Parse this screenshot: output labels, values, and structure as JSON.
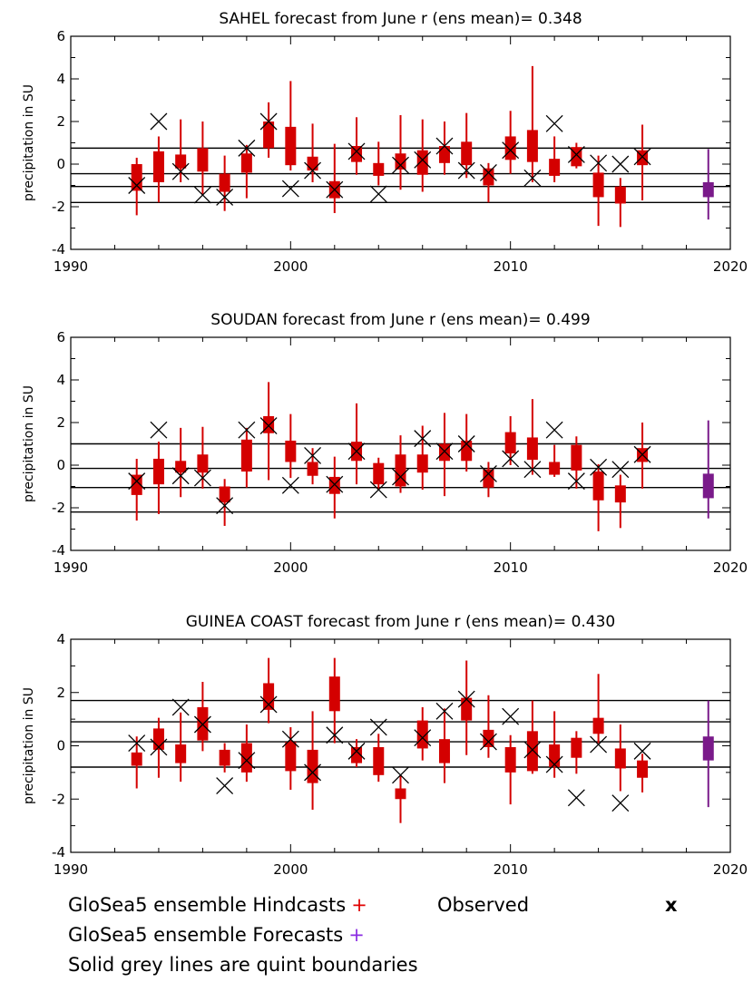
{
  "chart_data": [
    {
      "type": "box",
      "title": "SAHEL forecast from June  r (ens mean)= 0.348",
      "ylabel": "precipitation  in SU",
      "xlim": [
        1990,
        2020
      ],
      "ylim": [
        -4,
        6
      ],
      "xticks": [
        "1990",
        "2000",
        "2010",
        "2020"
      ],
      "yticks": [
        "-4",
        "-2",
        "0",
        "2",
        "4",
        "6"
      ],
      "quint_boundaries": [
        0.75,
        -0.45,
        -1.05,
        -1.8
      ],
      "hindcasts": [
        {
          "year": 1993,
          "low": -2.4,
          "q1": -1.25,
          "q3": 0.0,
          "high": 0.3
        },
        {
          "year": 1994,
          "low": -1.8,
          "q1": -0.85,
          "q3": 0.6,
          "high": 1.3
        },
        {
          "year": 1995,
          "low": -0.85,
          "q1": -0.2,
          "q3": 0.45,
          "high": 2.1
        },
        {
          "year": 1996,
          "low": -1.4,
          "q1": -0.35,
          "q3": 0.75,
          "high": 2.0
        },
        {
          "year": 1997,
          "low": -2.2,
          "q1": -1.3,
          "q3": -0.45,
          "high": 0.4
        },
        {
          "year": 1998,
          "low": -1.6,
          "q1": -0.4,
          "q3": 0.5,
          "high": 0.9
        },
        {
          "year": 1999,
          "low": 0.3,
          "q1": 0.75,
          "q3": 2.0,
          "high": 2.9
        },
        {
          "year": 2000,
          "low": -0.3,
          "q1": -0.05,
          "q3": 1.75,
          "high": 3.9
        },
        {
          "year": 2001,
          "low": -0.85,
          "q1": -0.3,
          "q3": 0.35,
          "high": 1.9
        },
        {
          "year": 2002,
          "low": -2.3,
          "q1": -1.6,
          "q3": -0.8,
          "high": 0.95
        },
        {
          "year": 2003,
          "low": -0.5,
          "q1": 0.1,
          "q3": 0.85,
          "high": 2.2
        },
        {
          "year": 2004,
          "low": -1.0,
          "q1": -0.55,
          "q3": 0.05,
          "high": 1.05
        },
        {
          "year": 2005,
          "low": -1.2,
          "q1": -0.25,
          "q3": 0.5,
          "high": 2.3
        },
        {
          "year": 2006,
          "low": -1.3,
          "q1": -0.5,
          "q3": 0.65,
          "high": 2.1
        },
        {
          "year": 2007,
          "low": -0.5,
          "q1": 0.05,
          "q3": 0.85,
          "high": 2.0
        },
        {
          "year": 2008,
          "low": -0.65,
          "q1": -0.05,
          "q3": 1.05,
          "high": 2.4
        },
        {
          "year": 2009,
          "low": -1.8,
          "q1": -1.0,
          "q3": -0.2,
          "high": 0.05
        },
        {
          "year": 2010,
          "low": -0.45,
          "q1": 0.2,
          "q3": 1.3,
          "high": 2.5
        },
        {
          "year": 2011,
          "low": -0.85,
          "q1": 0.1,
          "q3": 1.6,
          "high": 4.6
        },
        {
          "year": 2012,
          "low": -0.85,
          "q1": -0.55,
          "q3": 0.25,
          "high": 1.3
        },
        {
          "year": 2013,
          "low": -0.2,
          "q1": -0.1,
          "q3": 0.8,
          "high": 1.0
        },
        {
          "year": 2014,
          "low": -2.9,
          "q1": -1.55,
          "q3": -0.4,
          "high": 0.4
        },
        {
          "year": 2015,
          "low": -2.95,
          "q1": -1.85,
          "q3": -1.05,
          "high": -0.65
        },
        {
          "year": 2016,
          "low": -1.7,
          "q1": -0.05,
          "q3": 0.65,
          "high": 1.85
        }
      ],
      "forecast": {
        "year": 2019,
        "low": -2.6,
        "q1": -1.55,
        "q3": -0.85,
        "high": 0.7
      },
      "observed": [
        {
          "year": 1993,
          "value": -1.0
        },
        {
          "year": 1994,
          "value": 2.0
        },
        {
          "year": 1995,
          "value": -0.35
        },
        {
          "year": 1996,
          "value": -1.45
        },
        {
          "year": 1997,
          "value": -1.55
        },
        {
          "year": 1998,
          "value": 0.75
        },
        {
          "year": 1999,
          "value": 2.0
        },
        {
          "year": 2000,
          "value": -1.15
        },
        {
          "year": 2001,
          "value": -0.3
        },
        {
          "year": 2002,
          "value": -1.2
        },
        {
          "year": 2003,
          "value": 0.6
        },
        {
          "year": 2004,
          "value": -1.4
        },
        {
          "year": 2005,
          "value": -0.05
        },
        {
          "year": 2006,
          "value": 0.2
        },
        {
          "year": 2007,
          "value": 0.85
        },
        {
          "year": 2008,
          "value": -0.3
        },
        {
          "year": 2009,
          "value": -0.4
        },
        {
          "year": 2010,
          "value": 0.65
        },
        {
          "year": 2011,
          "value": -0.65
        },
        {
          "year": 2012,
          "value": 1.9
        },
        {
          "year": 2013,
          "value": 0.45
        },
        {
          "year": 2014,
          "value": 0.05
        },
        {
          "year": 2015,
          "value": 0.0
        },
        {
          "year": 2016,
          "value": 0.35
        }
      ]
    },
    {
      "type": "box",
      "title": "SOUDAN forecast from June  r (ens mean)= 0.499",
      "ylabel": "precipitation  in SU",
      "xlim": [
        1990,
        2020
      ],
      "ylim": [
        -4,
        6
      ],
      "xticks": [
        "1990",
        "2000",
        "2010",
        "2020"
      ],
      "yticks": [
        "-4",
        "-2",
        "0",
        "2",
        "4",
        "6"
      ],
      "quint_boundaries": [
        1.0,
        -0.15,
        -1.05,
        -2.2
      ],
      "hindcasts": [
        {
          "year": 1993,
          "low": -2.6,
          "q1": -1.4,
          "q3": -0.45,
          "high": 0.3
        },
        {
          "year": 1994,
          "low": -2.3,
          "q1": -0.9,
          "q3": 0.3,
          "high": 1.1
        },
        {
          "year": 1995,
          "low": -1.5,
          "q1": -0.35,
          "q3": 0.2,
          "high": 1.75
        },
        {
          "year": 1996,
          "low": -1.1,
          "q1": -0.35,
          "q3": 0.5,
          "high": 1.8
        },
        {
          "year": 1997,
          "low": -2.85,
          "q1": -1.75,
          "q3": -1.0,
          "high": -0.65
        },
        {
          "year": 1998,
          "low": -1.05,
          "q1": -0.3,
          "q3": 1.2,
          "high": 1.75
        },
        {
          "year": 1999,
          "low": -0.7,
          "q1": 1.5,
          "q3": 2.3,
          "high": 3.9
        },
        {
          "year": 2000,
          "low": -0.6,
          "q1": 0.15,
          "q3": 1.15,
          "high": 2.4
        },
        {
          "year": 2001,
          "low": -0.9,
          "q1": -0.5,
          "q3": 0.15,
          "high": 0.8
        },
        {
          "year": 2002,
          "low": -2.5,
          "q1": -1.35,
          "q3": -0.55,
          "high": 0.4
        },
        {
          "year": 2003,
          "low": -0.9,
          "q1": 0.2,
          "q3": 1.1,
          "high": 2.9
        },
        {
          "year": 2004,
          "low": -1.15,
          "q1": -0.9,
          "q3": 0.1,
          "high": 0.35
        },
        {
          "year": 2005,
          "low": -1.3,
          "q1": -1.0,
          "q3": 0.5,
          "high": 1.4
        },
        {
          "year": 2006,
          "low": -1.15,
          "q1": -0.35,
          "q3": 0.5,
          "high": 1.85
        },
        {
          "year": 2007,
          "low": -1.45,
          "q1": 0.2,
          "q3": 1.0,
          "high": 2.45
        },
        {
          "year": 2008,
          "low": -0.3,
          "q1": 0.2,
          "q3": 1.15,
          "high": 2.4
        },
        {
          "year": 2009,
          "low": -1.5,
          "q1": -1.05,
          "q3": -0.2,
          "high": 0.15
        },
        {
          "year": 2010,
          "low": 0.0,
          "q1": 0.55,
          "q3": 1.55,
          "high": 2.3
        },
        {
          "year": 2011,
          "low": -0.45,
          "q1": 0.25,
          "q3": 1.3,
          "high": 3.1
        },
        {
          "year": 2012,
          "low": -0.55,
          "q1": -0.45,
          "q3": 0.15,
          "high": 0.95
        },
        {
          "year": 2013,
          "low": -1.1,
          "q1": -0.25,
          "q3": 0.95,
          "high": 1.35
        },
        {
          "year": 2014,
          "low": -3.1,
          "q1": -1.65,
          "q3": -0.3,
          "high": 0.05
        },
        {
          "year": 2015,
          "low": -2.95,
          "q1": -1.75,
          "q3": -0.95,
          "high": -0.45
        },
        {
          "year": 2016,
          "low": -1.1,
          "q1": 0.15,
          "q3": 0.8,
          "high": 2.0
        }
      ],
      "forecast": {
        "year": 2019,
        "low": -2.5,
        "q1": -1.55,
        "q3": -0.4,
        "high": 2.1
      },
      "observed": [
        {
          "year": 1993,
          "value": -0.75
        },
        {
          "year": 1994,
          "value": 1.65
        },
        {
          "year": 1995,
          "value": -0.5
        },
        {
          "year": 1996,
          "value": -0.6
        },
        {
          "year": 1997,
          "value": -1.9
        },
        {
          "year": 1998,
          "value": 1.65
        },
        {
          "year": 1999,
          "value": 1.85
        },
        {
          "year": 2000,
          "value": -0.95
        },
        {
          "year": 2001,
          "value": 0.45
        },
        {
          "year": 2002,
          "value": -0.9
        },
        {
          "year": 2003,
          "value": 0.65
        },
        {
          "year": 2004,
          "value": -1.15
        },
        {
          "year": 2005,
          "value": -0.55
        },
        {
          "year": 2006,
          "value": 1.25
        },
        {
          "year": 2007,
          "value": 0.65
        },
        {
          "year": 2008,
          "value": 1.0
        },
        {
          "year": 2009,
          "value": -0.4
        },
        {
          "year": 2010,
          "value": 0.3
        },
        {
          "year": 2011,
          "value": -0.2
        },
        {
          "year": 2012,
          "value": 1.65
        },
        {
          "year": 2013,
          "value": -0.75
        },
        {
          "year": 2014,
          "value": -0.1
        },
        {
          "year": 2015,
          "value": -0.2
        },
        {
          "year": 2016,
          "value": 0.5
        }
      ]
    },
    {
      "type": "box",
      "title": "GUINEA COAST forecast from June  r (ens mean)= 0.430",
      "ylabel": "precipitation  in SU",
      "xlim": [
        1990,
        2020
      ],
      "ylim": [
        -4,
        4
      ],
      "xticks": [
        "1990",
        "2000",
        "2010",
        "2020"
      ],
      "yticks": [
        "-4",
        "-2",
        "0",
        "2",
        "4"
      ],
      "quint_boundaries": [
        1.7,
        0.9,
        0.15,
        -0.8
      ],
      "hindcasts": [
        {
          "year": 1993,
          "low": -1.6,
          "q1": -0.75,
          "q3": -0.25,
          "high": 0.35
        },
        {
          "year": 1994,
          "low": -1.2,
          "q1": -0.15,
          "q3": 0.65,
          "high": 1.05
        },
        {
          "year": 1995,
          "low": -1.35,
          "q1": -0.65,
          "q3": 0.05,
          "high": 1.25
        },
        {
          "year": 1996,
          "low": -0.2,
          "q1": 0.2,
          "q3": 1.45,
          "high": 2.4
        },
        {
          "year": 1997,
          "low": -1.0,
          "q1": -0.75,
          "q3": -0.15,
          "high": 0.1
        },
        {
          "year": 1998,
          "low": -1.35,
          "q1": -1.0,
          "q3": 0.1,
          "high": 0.8
        },
        {
          "year": 1999,
          "low": 0.85,
          "q1": 1.35,
          "q3": 2.35,
          "high": 3.3
        },
        {
          "year": 2000,
          "low": -1.65,
          "q1": -0.95,
          "q3": 0.15,
          "high": 0.7
        },
        {
          "year": 2001,
          "low": -2.4,
          "q1": -1.4,
          "q3": -0.15,
          "high": 1.3
        },
        {
          "year": 2002,
          "low": 0.1,
          "q1": 1.3,
          "q3": 2.6,
          "high": 3.3
        },
        {
          "year": 2003,
          "low": -0.8,
          "q1": -0.65,
          "q3": -0.05,
          "high": 0.25
        },
        {
          "year": 2004,
          "low": -1.35,
          "q1": -1.1,
          "q3": -0.05,
          "high": 0.45
        },
        {
          "year": 2005,
          "low": -2.9,
          "q1": -2.0,
          "q3": -1.6,
          "high": -1.1
        },
        {
          "year": 2006,
          "low": -0.55,
          "q1": -0.1,
          "q3": 0.95,
          "high": 1.45
        },
        {
          "year": 2007,
          "low": -1.4,
          "q1": -0.65,
          "q3": 0.25,
          "high": 1.4
        },
        {
          "year": 2008,
          "low": -0.35,
          "q1": 0.95,
          "q3": 1.8,
          "high": 3.2
        },
        {
          "year": 2009,
          "low": -0.45,
          "q1": -0.05,
          "q3": 0.6,
          "high": 1.9
        },
        {
          "year": 2010,
          "low": -2.2,
          "q1": -1.0,
          "q3": -0.05,
          "high": 0.4
        },
        {
          "year": 2011,
          "low": -1.05,
          "q1": -0.95,
          "q3": 0.55,
          "high": 1.7
        },
        {
          "year": 2012,
          "low": -1.2,
          "q1": -0.8,
          "q3": 0.05,
          "high": 1.3
        },
        {
          "year": 2013,
          "low": -1.05,
          "q1": -0.45,
          "q3": 0.3,
          "high": 0.55
        },
        {
          "year": 2014,
          "low": 0.1,
          "q1": 0.45,
          "q3": 1.05,
          "high": 2.7
        },
        {
          "year": 2015,
          "low": -1.7,
          "q1": -0.85,
          "q3": -0.1,
          "high": 0.8
        },
        {
          "year": 2016,
          "low": -1.75,
          "q1": -1.2,
          "q3": -0.55,
          "high": -0.3
        }
      ],
      "forecast": {
        "year": 2019,
        "low": -2.3,
        "q1": -0.55,
        "q3": 0.35,
        "high": 1.7
      },
      "observed": [
        {
          "year": 1993,
          "value": 0.1
        },
        {
          "year": 1994,
          "value": -0.05
        },
        {
          "year": 1995,
          "value": 1.45
        },
        {
          "year": 1996,
          "value": 0.8
        },
        {
          "year": 1997,
          "value": -1.5
        },
        {
          "year": 1998,
          "value": -0.55
        },
        {
          "year": 1999,
          "value": 1.55
        },
        {
          "year": 2000,
          "value": 0.25
        },
        {
          "year": 2001,
          "value": -1.0
        },
        {
          "year": 2002,
          "value": 0.4
        },
        {
          "year": 2003,
          "value": -0.2
        },
        {
          "year": 2004,
          "value": 0.7
        },
        {
          "year": 2005,
          "value": -1.1
        },
        {
          "year": 2006,
          "value": 0.3
        },
        {
          "year": 2007,
          "value": 1.3
        },
        {
          "year": 2008,
          "value": 1.75
        },
        {
          "year": 2009,
          "value": 0.15
        },
        {
          "year": 2010,
          "value": 1.1
        },
        {
          "year": 2011,
          "value": -0.15
        },
        {
          "year": 2012,
          "value": -0.7
        },
        {
          "year": 2013,
          "value": -1.95
        },
        {
          "year": 2014,
          "value": 0.05
        },
        {
          "year": 2015,
          "value": -2.15
        },
        {
          "year": 2016,
          "value": -0.2
        }
      ]
    }
  ],
  "colors": {
    "hindcast": "#d40000",
    "forecast": "#7a1a8a",
    "observed": "#000000",
    "quint_line": "#000000"
  },
  "legend": {
    "hindcasts": "GloSea5 ensemble Hindcasts",
    "hindcasts_marker": "+",
    "observed": "Observed",
    "observed_marker": "x",
    "forecasts": "GloSea5 ensemble Forecasts",
    "forecasts_marker": "+",
    "note": "Solid grey lines are quint boundaries"
  }
}
